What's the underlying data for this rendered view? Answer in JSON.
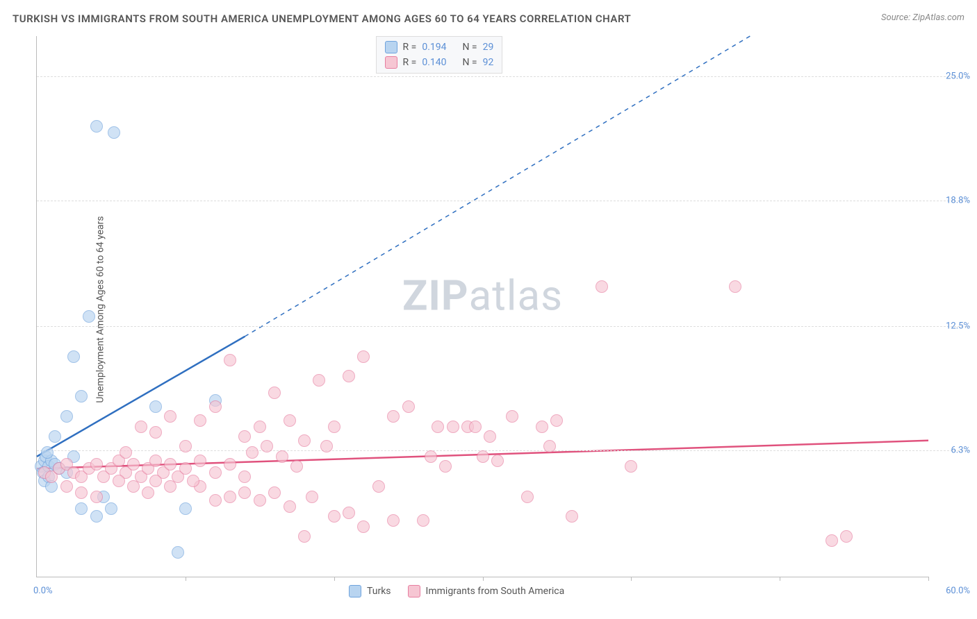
{
  "title": "TURKISH VS IMMIGRANTS FROM SOUTH AMERICA UNEMPLOYMENT AMONG AGES 60 TO 64 YEARS CORRELATION CHART",
  "source": "Source: ZipAtlas.com",
  "ylabel": "Unemployment Among Ages 60 to 64 years",
  "watermark_bold": "ZIP",
  "watermark_light": "atlas",
  "chart": {
    "type": "scatter",
    "xlim": [
      0,
      60
    ],
    "ylim": [
      0,
      27
    ],
    "x_min_label": "0.0%",
    "x_max_label": "60.0%",
    "y_ticks": [
      {
        "v": 6.3,
        "label": "6.3%"
      },
      {
        "v": 12.5,
        "label": "12.5%"
      },
      {
        "v": 18.8,
        "label": "18.8%"
      },
      {
        "v": 25.0,
        "label": "25.0%"
      }
    ],
    "x_tick_positions": [
      10,
      20,
      30,
      40,
      50,
      60
    ],
    "background_color": "#ffffff",
    "grid_color": "#dddddd",
    "label_color": "#5b8fd6",
    "marker_size": 18,
    "marker_opacity": 0.65
  },
  "series": [
    {
      "name": "Turks",
      "fill": "#b8d4f0",
      "stroke": "#6fa3dd",
      "line_color": "#2f6fc0",
      "R": "0.194",
      "N": "29",
      "trend": {
        "x1": 0,
        "y1": 6.0,
        "x2_solid": 14,
        "y2_solid": 12.0,
        "x2_dash": 48,
        "y2_dash": 27.0
      },
      "points": [
        [
          0.3,
          5.5
        ],
        [
          0.5,
          5.8
        ],
        [
          0.4,
          5.2
        ],
        [
          0.6,
          6.0
        ],
        [
          0.8,
          5.5
        ],
        [
          1.0,
          5.8
        ],
        [
          0.7,
          6.2
        ],
        [
          1.2,
          5.6
        ],
        [
          1.5,
          5.4
        ],
        [
          0.5,
          4.8
        ],
        [
          0.8,
          5.0
        ],
        [
          2.0,
          5.2
        ],
        [
          1.0,
          4.5
        ],
        [
          2.5,
          6.0
        ],
        [
          3.0,
          3.4
        ],
        [
          4.0,
          3.0
        ],
        [
          5.0,
          3.4
        ],
        [
          4.5,
          4.0
        ],
        [
          9.5,
          1.2
        ],
        [
          10.0,
          3.4
        ],
        [
          8.0,
          8.5
        ],
        [
          12.0,
          8.8
        ],
        [
          2.5,
          11.0
        ],
        [
          3.0,
          9.0
        ],
        [
          3.5,
          13.0
        ],
        [
          4.0,
          22.5
        ],
        [
          5.2,
          22.2
        ],
        [
          1.2,
          7.0
        ],
        [
          2.0,
          8.0
        ]
      ]
    },
    {
      "name": "Immigrants from South America",
      "fill": "#f6c6d3",
      "stroke": "#e77ea0",
      "line_color": "#e0527d",
      "R": "0.140",
      "N": "92",
      "trend": {
        "x1": 0,
        "y1": 5.4,
        "x2_solid": 60,
        "y2_solid": 6.8,
        "x2_dash": 60,
        "y2_dash": 6.8
      },
      "points": [
        [
          0.5,
          5.2
        ],
        [
          1.0,
          5.0
        ],
        [
          1.5,
          5.4
        ],
        [
          2.0,
          5.6
        ],
        [
          2.5,
          5.2
        ],
        [
          3.0,
          5.0
        ],
        [
          3.5,
          5.4
        ],
        [
          4.0,
          5.6
        ],
        [
          4.5,
          5.0
        ],
        [
          5.0,
          5.4
        ],
        [
          5.5,
          5.8
        ],
        [
          6.0,
          5.2
        ],
        [
          6.5,
          5.6
        ],
        [
          7.0,
          5.0
        ],
        [
          7.5,
          5.4
        ],
        [
          8.0,
          5.8
        ],
        [
          8.5,
          5.2
        ],
        [
          9.0,
          5.6
        ],
        [
          9.5,
          5.0
        ],
        [
          10.0,
          5.4
        ],
        [
          11.0,
          5.8
        ],
        [
          12.0,
          5.2
        ],
        [
          13.0,
          5.6
        ],
        [
          14.0,
          5.0
        ],
        [
          2.0,
          4.5
        ],
        [
          3.0,
          4.2
        ],
        [
          4.0,
          4.0
        ],
        [
          6.0,
          6.2
        ],
        [
          7.0,
          7.5
        ],
        [
          8.0,
          7.2
        ],
        [
          9.0,
          8.0
        ],
        [
          10.0,
          6.5
        ],
        [
          11.0,
          7.8
        ],
        [
          12.0,
          8.5
        ],
        [
          13.0,
          10.8
        ],
        [
          14.0,
          7.0
        ],
        [
          15.0,
          7.5
        ],
        [
          16.0,
          9.2
        ],
        [
          17.0,
          7.8
        ],
        [
          18.0,
          2.0
        ],
        [
          19.0,
          9.8
        ],
        [
          20.0,
          7.5
        ],
        [
          21.0,
          10.0
        ],
        [
          22.0,
          11.0
        ],
        [
          23.0,
          4.5
        ],
        [
          24.0,
          8.0
        ],
        [
          25.0,
          8.5
        ],
        [
          26.0,
          2.8
        ],
        [
          27.0,
          7.5
        ],
        [
          28.0,
          7.5
        ],
        [
          15.0,
          3.8
        ],
        [
          16.0,
          4.2
        ],
        [
          17.0,
          3.5
        ],
        [
          20.0,
          3.0
        ],
        [
          21.0,
          3.2
        ],
        [
          18.5,
          4.0
        ],
        [
          14.0,
          4.2
        ],
        [
          13.0,
          4.0
        ],
        [
          12.0,
          3.8
        ],
        [
          11.0,
          4.5
        ],
        [
          10.5,
          4.8
        ],
        [
          9.0,
          4.5
        ],
        [
          8.0,
          4.8
        ],
        [
          7.5,
          4.2
        ],
        [
          6.5,
          4.5
        ],
        [
          5.5,
          4.8
        ],
        [
          29.0,
          7.5
        ],
        [
          30.0,
          6.0
        ],
        [
          31.0,
          5.8
        ],
        [
          32.0,
          8.0
        ],
        [
          33.0,
          4.0
        ],
        [
          34.0,
          7.5
        ],
        [
          35.0,
          7.8
        ],
        [
          36.0,
          3.0
        ],
        [
          38.0,
          14.5
        ],
        [
          40.0,
          5.5
        ],
        [
          47.0,
          14.5
        ],
        [
          53.5,
          1.8
        ],
        [
          54.5,
          2.0
        ],
        [
          29.5,
          7.5
        ],
        [
          24.0,
          2.8
        ],
        [
          22.0,
          2.5
        ],
        [
          19.5,
          6.5
        ],
        [
          18.0,
          6.8
        ],
        [
          16.5,
          6.0
        ],
        [
          15.5,
          6.5
        ],
        [
          14.5,
          6.2
        ],
        [
          26.5,
          6.0
        ],
        [
          27.5,
          5.5
        ],
        [
          30.5,
          7.0
        ],
        [
          34.5,
          6.5
        ],
        [
          17.5,
          5.5
        ]
      ]
    }
  ],
  "legend_labels": {
    "R": "R =",
    "N": "N ="
  }
}
